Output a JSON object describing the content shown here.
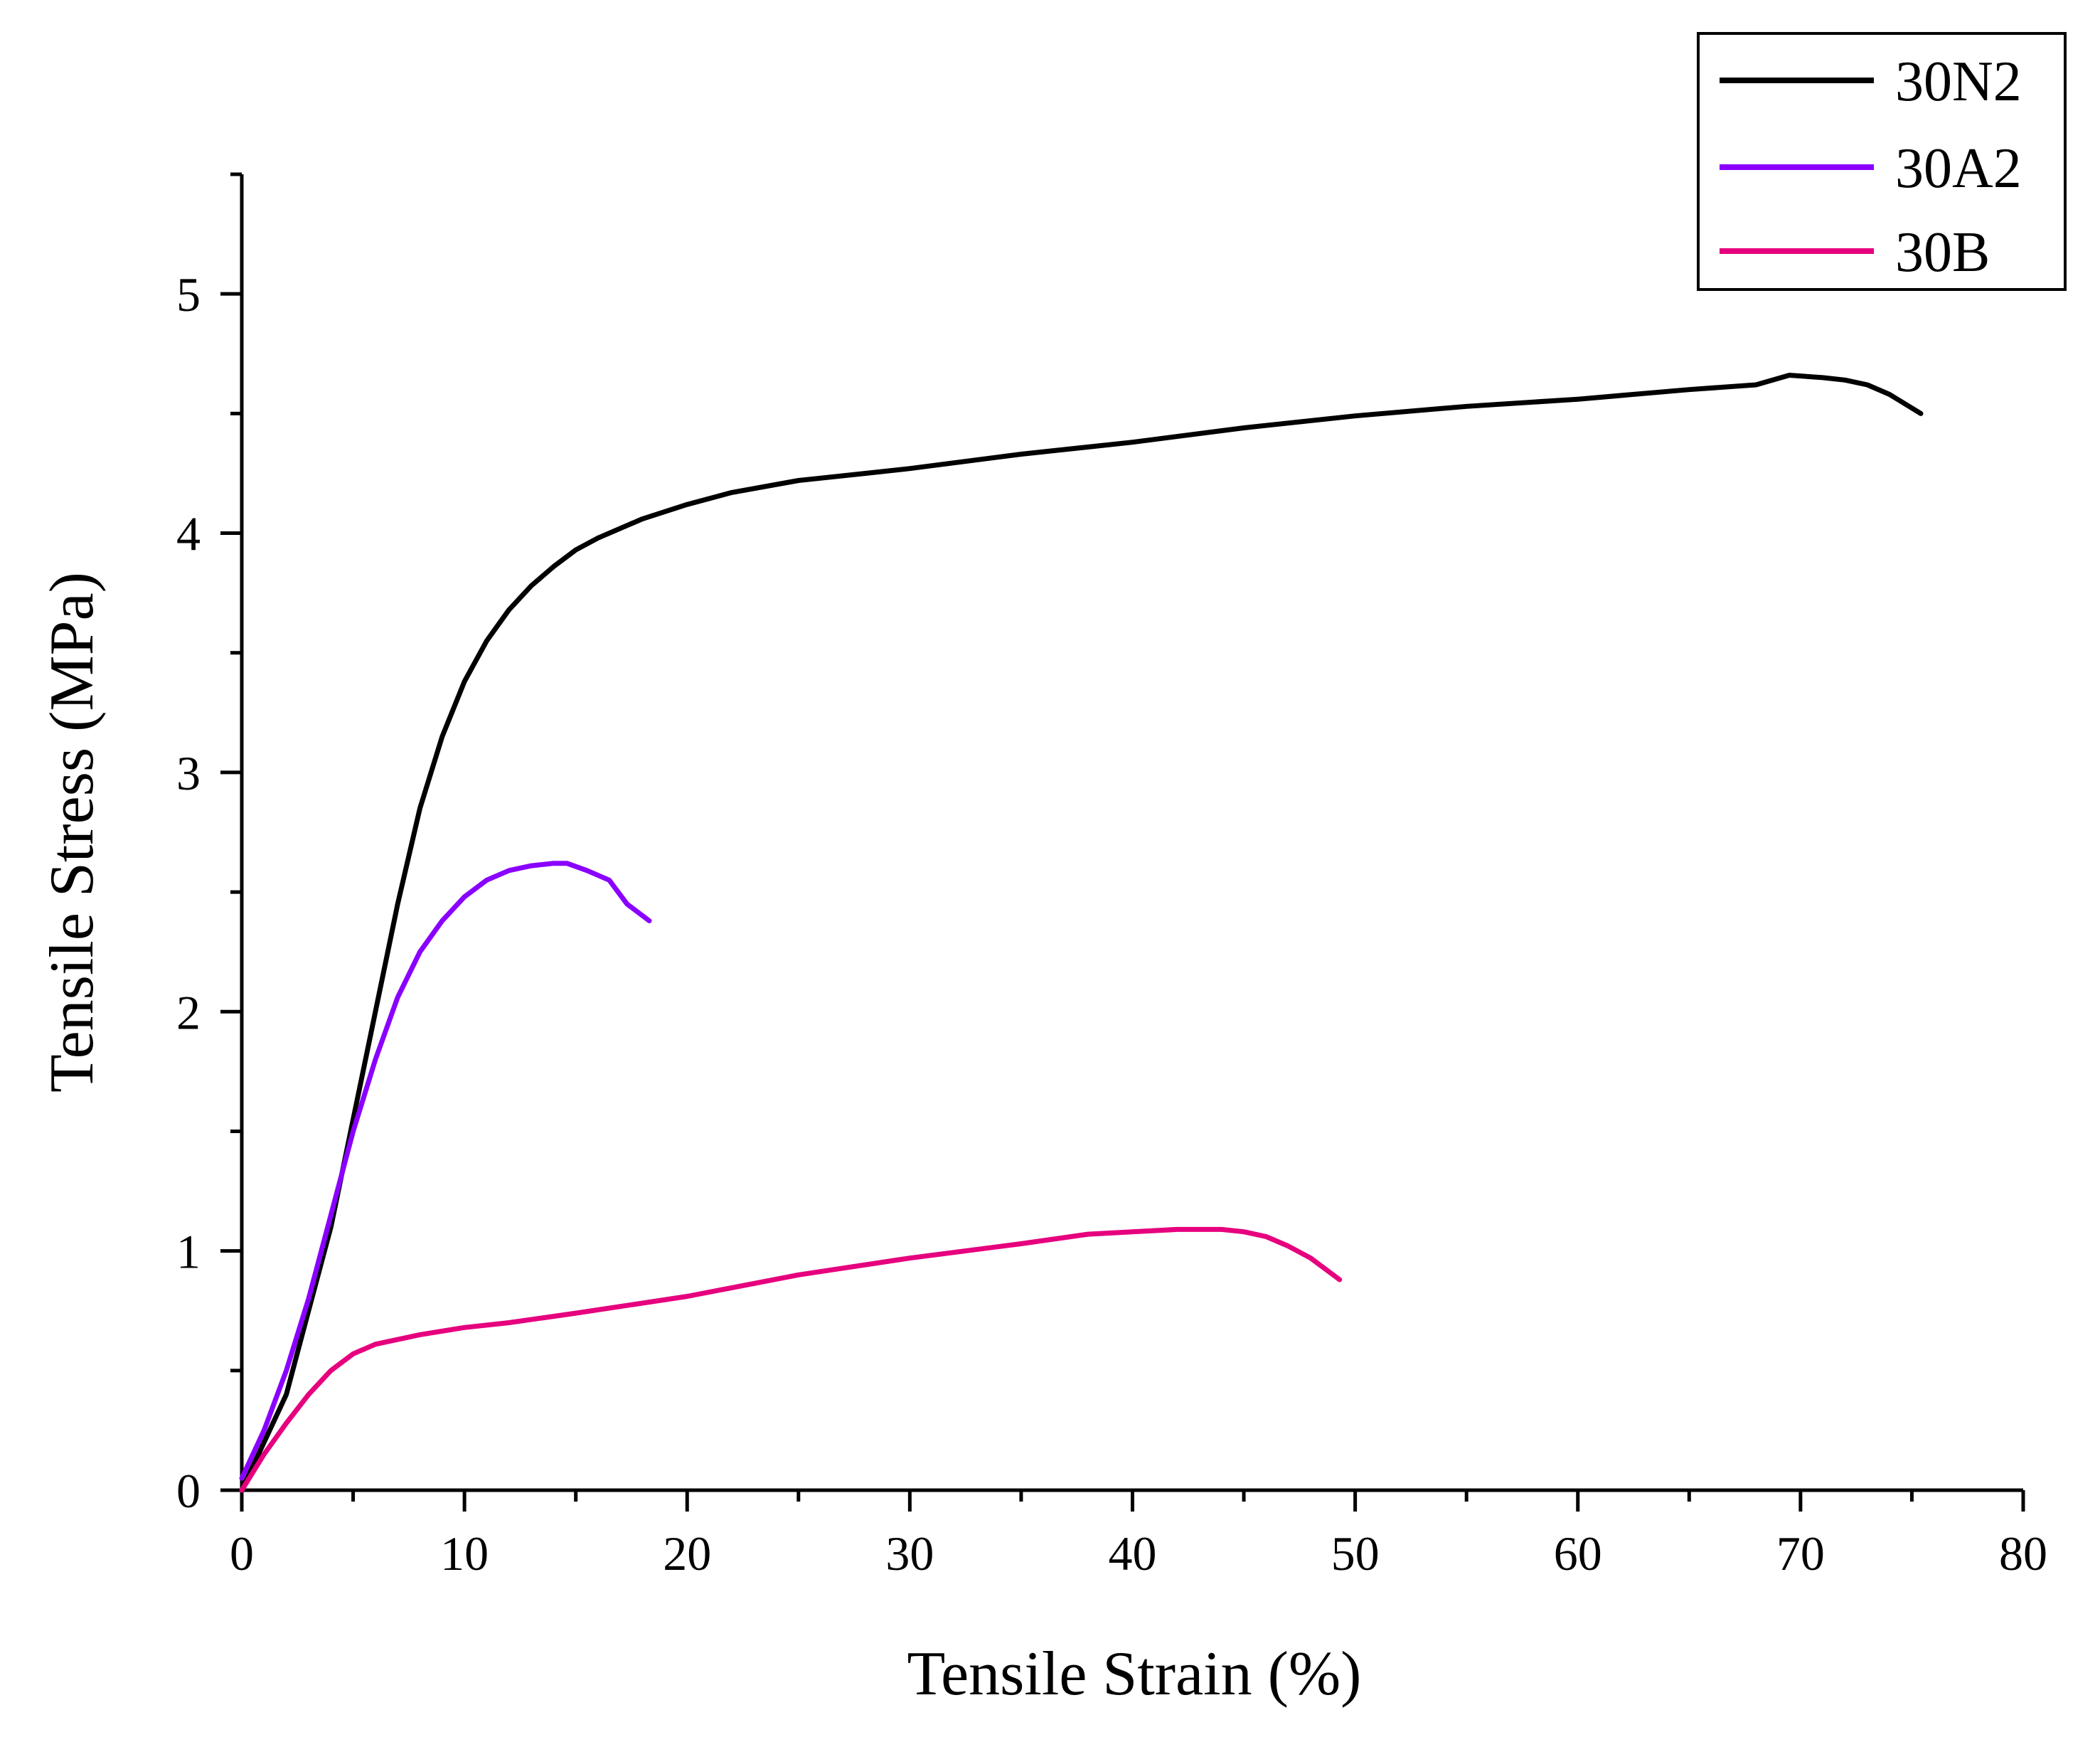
{
  "chart_data": {
    "type": "line",
    "title": "",
    "xlabel": "Tensile Strain (%)",
    "ylabel": "Tensile Stress (MPa)",
    "xlim": [
      0,
      80
    ],
    "ylim": [
      0,
      5.5
    ],
    "xticks": [
      0,
      10,
      20,
      30,
      40,
      50,
      60,
      70,
      80
    ],
    "yticks": [
      0,
      1,
      2,
      3,
      4,
      5
    ],
    "xtick_labels": [
      "0",
      "10",
      "20",
      "30",
      "40",
      "50",
      "60",
      "70",
      "80"
    ],
    "ytick_labels": [
      "0",
      "1",
      "2",
      "3",
      "4",
      "5"
    ],
    "grid": false,
    "legend_position": "top-right",
    "series": [
      {
        "name": "30N2",
        "color": "#000000",
        "x": [
          0,
          1,
          2,
          3,
          4,
          5,
          6,
          7,
          8,
          9,
          10,
          11,
          12,
          13,
          14,
          15,
          16,
          18,
          20,
          22,
          25,
          28,
          30,
          35,
          40,
          45,
          50,
          55,
          60,
          65,
          68,
          69.5,
          71,
          72,
          73,
          74,
          75.4
        ],
        "y": [
          0,
          0.2,
          0.4,
          0.75,
          1.1,
          1.55,
          2.0,
          2.45,
          2.85,
          3.15,
          3.38,
          3.55,
          3.68,
          3.78,
          3.86,
          3.93,
          3.98,
          4.06,
          4.12,
          4.17,
          4.22,
          4.25,
          4.27,
          4.33,
          4.38,
          4.44,
          4.49,
          4.53,
          4.56,
          4.6,
          4.62,
          4.66,
          4.65,
          4.64,
          4.62,
          4.58,
          4.5
        ]
      },
      {
        "name": "30A2",
        "color": "#8a00ff",
        "x": [
          0,
          1,
          2,
          3,
          4,
          5,
          6,
          7,
          8,
          9,
          10,
          11,
          12,
          13,
          14,
          14.6,
          15.5,
          16.5,
          17.3,
          18.3
        ],
        "y": [
          0.05,
          0.25,
          0.5,
          0.8,
          1.15,
          1.5,
          1.8,
          2.06,
          2.25,
          2.38,
          2.48,
          2.55,
          2.59,
          2.61,
          2.62,
          2.62,
          2.59,
          2.55,
          2.45,
          2.38
        ]
      },
      {
        "name": "30B",
        "color": "#e6007e",
        "x": [
          0,
          1,
          2,
          3,
          4,
          5,
          6,
          8,
          10,
          12,
          15,
          20,
          25,
          30,
          35,
          38,
          40,
          42,
          44,
          45,
          46,
          47,
          48,
          49.3
        ],
        "y": [
          0,
          0.15,
          0.28,
          0.4,
          0.5,
          0.57,
          0.61,
          0.65,
          0.68,
          0.7,
          0.74,
          0.81,
          0.9,
          0.97,
          1.03,
          1.07,
          1.08,
          1.09,
          1.09,
          1.08,
          1.06,
          1.02,
          0.97,
          0.88
        ]
      }
    ]
  }
}
